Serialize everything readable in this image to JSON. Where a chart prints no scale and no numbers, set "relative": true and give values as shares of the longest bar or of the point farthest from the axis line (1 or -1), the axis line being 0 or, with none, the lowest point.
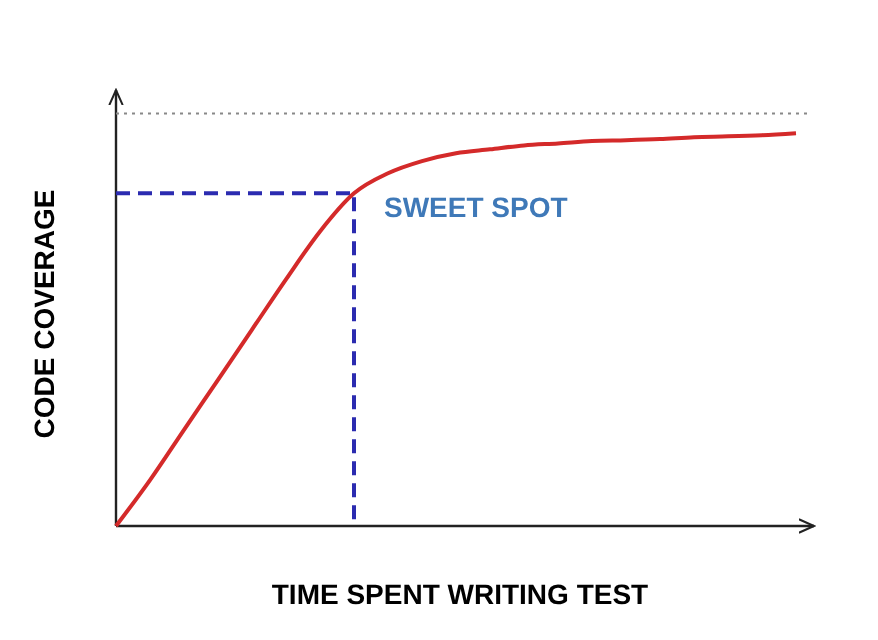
{
  "chart_data": {
    "type": "line",
    "relative": true,
    "xlabel": "TIME SPENT WRITING TEST",
    "ylabel": "CODE COVERAGE",
    "categories": [
      null,
      null,
      null,
      null,
      null,
      null,
      null,
      null,
      null,
      null,
      null,
      null,
      null,
      null,
      null,
      null,
      null,
      null,
      null,
      null,
      null
    ],
    "series": [
      {
        "color": "#d42a2a",
        "values": [
          0,
          0.117,
          0.245,
          0.372,
          0.5,
          0.628,
          0.75,
          0.847,
          0.898,
          0.929,
          0.949,
          0.959,
          0.969,
          0.974,
          0.98,
          0.982,
          0.985,
          0.99,
          0.992,
          0.995,
          1
        ]
      }
    ],
    "ref_lines": [
      {
        "axis": "y",
        "value": 1.05,
        "color": "#888888",
        "line_style": "dotted"
      },
      {
        "axis": "y",
        "value": 0.847,
        "label": "SWEET SPOT",
        "color": "#2b2bb0",
        "line_style": "dashed"
      }
    ],
    "marker": "none",
    "line_style": "solid"
  }
}
